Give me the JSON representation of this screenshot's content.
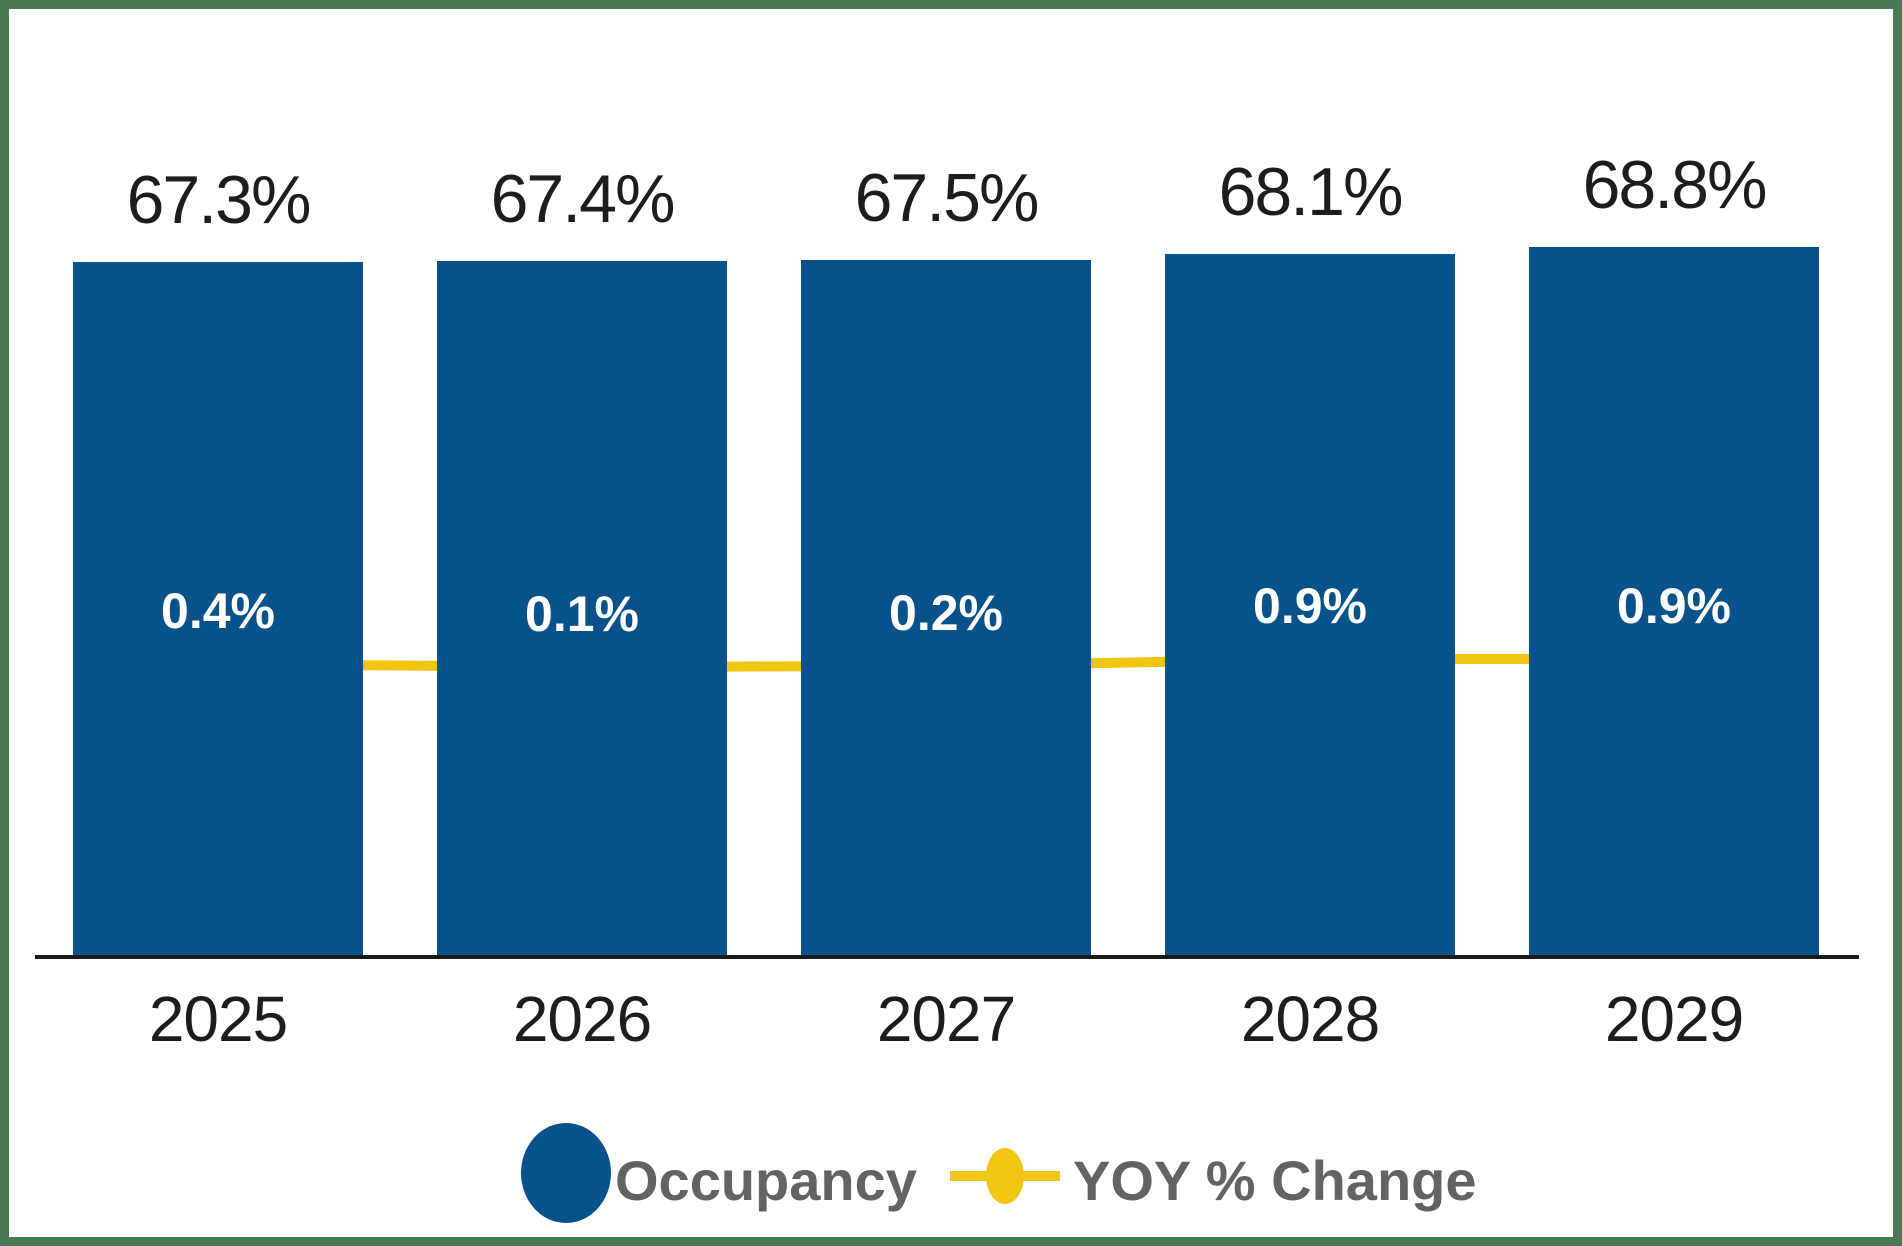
{
  "chart_data": {
    "type": "combo",
    "categories": [
      "2025",
      "2026",
      "2027",
      "2028",
      "2029"
    ],
    "series": [
      {
        "name": "Occupancy",
        "type": "bar",
        "values": [
          67.3,
          67.4,
          67.5,
          68.1,
          68.8
        ],
        "labels": [
          "67.3%",
          "67.4%",
          "67.5%",
          "68.1%",
          "68.8%"
        ],
        "color": "#08528C"
      },
      {
        "name": "YOY % Change",
        "type": "line",
        "values": [
          0.4,
          0.1,
          0.2,
          0.9,
          0.9
        ],
        "labels": [
          "0.4%",
          "0.1%",
          "0.2%",
          "0.9%",
          "0.9%"
        ],
        "color": "#F2C512"
      }
    ],
    "title": "",
    "xlabel": "",
    "ylabel": "",
    "y_axis_visible": false,
    "grid": false,
    "x_axis_line": true,
    "legend_position": "bottom"
  },
  "legend": {
    "items": [
      {
        "label": "Occupancy",
        "swatch": "circle",
        "color": "#08528C"
      },
      {
        "label": "YOY % Change",
        "swatch": "line-dot",
        "color": "#F2C512"
      }
    ]
  },
  "colors": {
    "bar": "#08528C",
    "line": "#F2C512",
    "frame_border": "#4A7A54",
    "axis_line": "#1A1A1A",
    "bar_value_label": "#1D1D1B",
    "yoy_value_label": "#FFFFFF",
    "legend_text": "#636363",
    "background": "#FFFFFF"
  }
}
